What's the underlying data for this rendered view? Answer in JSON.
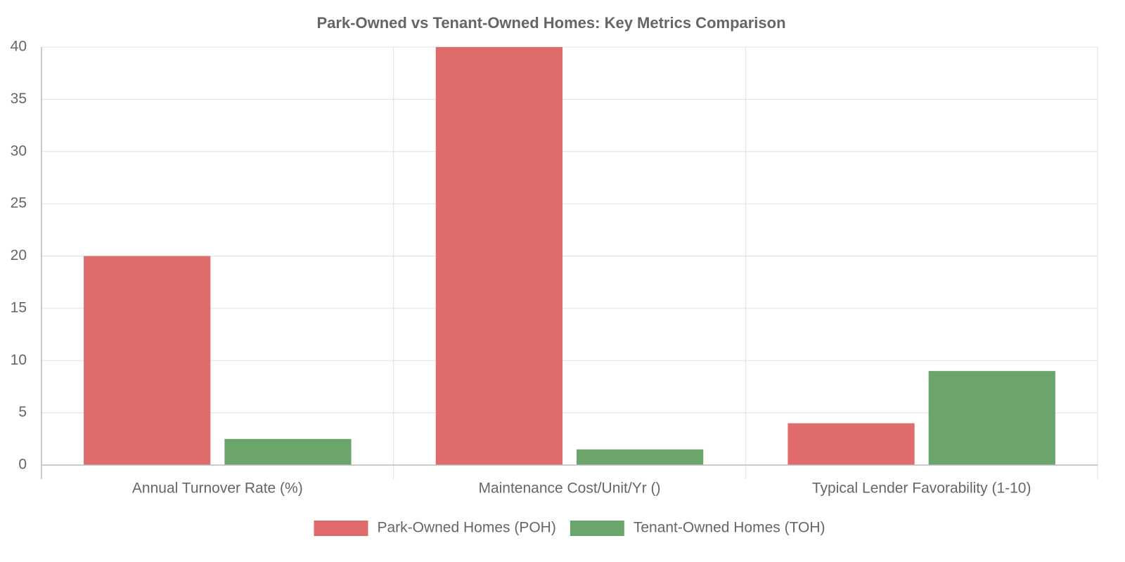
{
  "chart_data": {
    "type": "bar",
    "title": "Park-Owned vs Tenant-Owned Homes: Key Metrics Comparison",
    "categories": [
      "Annual Turnover Rate (%)",
      "Maintenance Cost/Unit/Yr ()",
      "Typical Lender Favorability (1-10)"
    ],
    "series": [
      {
        "name": "Park-Owned Homes (POH)",
        "color": "#e06b6b",
        "values": [
          20,
          40,
          4
        ]
      },
      {
        "name": "Tenant-Owned Homes (TOH)",
        "color": "#6ca56c",
        "values": [
          2.5,
          1.5,
          9
        ]
      }
    ],
    "ylim": [
      0,
      40
    ],
    "yticks": [
      0,
      5,
      10,
      15,
      20,
      25,
      30,
      35,
      40
    ],
    "grid": true,
    "legend": "bottom"
  }
}
